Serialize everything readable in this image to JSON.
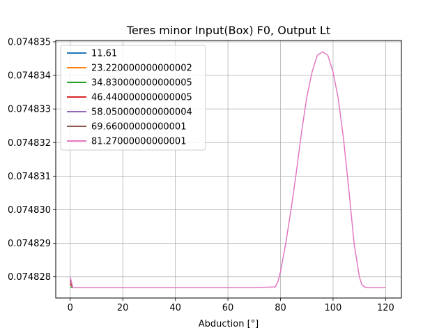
{
  "chart_data": {
    "type": "line",
    "title": "Teres minor Input(Box) F0, Output Lt",
    "xlabel": "Abduction [°]",
    "ylabel": "",
    "xlim": [
      -5.5,
      126
    ],
    "ylim": [
      0.07482737,
      0.07483504
    ],
    "xticks": [
      0,
      20,
      40,
      60,
      80,
      100,
      120
    ],
    "xtick_labels": [
      "0",
      "20",
      "40",
      "60",
      "80",
      "100",
      "120"
    ],
    "yticks": [
      0.074828,
      0.074829,
      0.07483,
      0.074831,
      0.074832,
      0.074833,
      0.074834,
      0.074835
    ],
    "ytick_labels": [
      "0.074828",
      "0.074829",
      "0.074830",
      "0.074831",
      "0.074832",
      "0.074833",
      "0.074834",
      "0.074835"
    ],
    "grid": true,
    "legend_position": "upper-left",
    "series": [
      {
        "name": "11.61",
        "color": "#1f77b4",
        "x": [
          0,
          1
        ],
        "y": [
          0.0748278,
          0.07482768
        ]
      },
      {
        "name": "23.220000000000002",
        "color": "#ff7f0e",
        "x": [
          0,
          1
        ],
        "y": [
          0.0748278,
          0.07482768
        ]
      },
      {
        "name": "34.830000000000005",
        "color": "#2ca02c",
        "x": [
          0,
          1
        ],
        "y": [
          0.0748277,
          0.07482768
        ]
      },
      {
        "name": "46.440000000000005",
        "color": "#d62728",
        "x": [
          0,
          1
        ],
        "y": [
          0.0748278,
          0.07482768
        ]
      },
      {
        "name": "58.050000000000004",
        "color": "#9467bd",
        "x": [
          0,
          1
        ],
        "y": [
          0.0748279,
          0.07482768
        ]
      },
      {
        "name": "69.66000000000001",
        "color": "#8c564b",
        "x": [
          0,
          1
        ],
        "y": [
          0.0748279,
          0.07482768
        ]
      },
      {
        "name": "81.27000000000001",
        "color": "#e377c2",
        "x": [
          0,
          1,
          10,
          20,
          30,
          40,
          50,
          60,
          70,
          78,
          79,
          80,
          82,
          84,
          86,
          88,
          90,
          92,
          94,
          96,
          98,
          100,
          102,
          104,
          106,
          108,
          110,
          111,
          112,
          113,
          115,
          120
        ],
        "y": [
          0.074828,
          0.07482768,
          0.07482768,
          0.07482768,
          0.07482768,
          0.07482768,
          0.07482768,
          0.07482768,
          0.07482768,
          0.0748277,
          0.07482785,
          0.07482815,
          0.074829,
          0.07483,
          0.0748311,
          0.0748323,
          0.07483335,
          0.0748341,
          0.0748346,
          0.0748347,
          0.0748346,
          0.0748341,
          0.0748333,
          0.0748321,
          0.0748306,
          0.074829,
          0.074828,
          0.07482776,
          0.0748277,
          0.07482768,
          0.07482768,
          0.07482768
        ]
      }
    ]
  }
}
